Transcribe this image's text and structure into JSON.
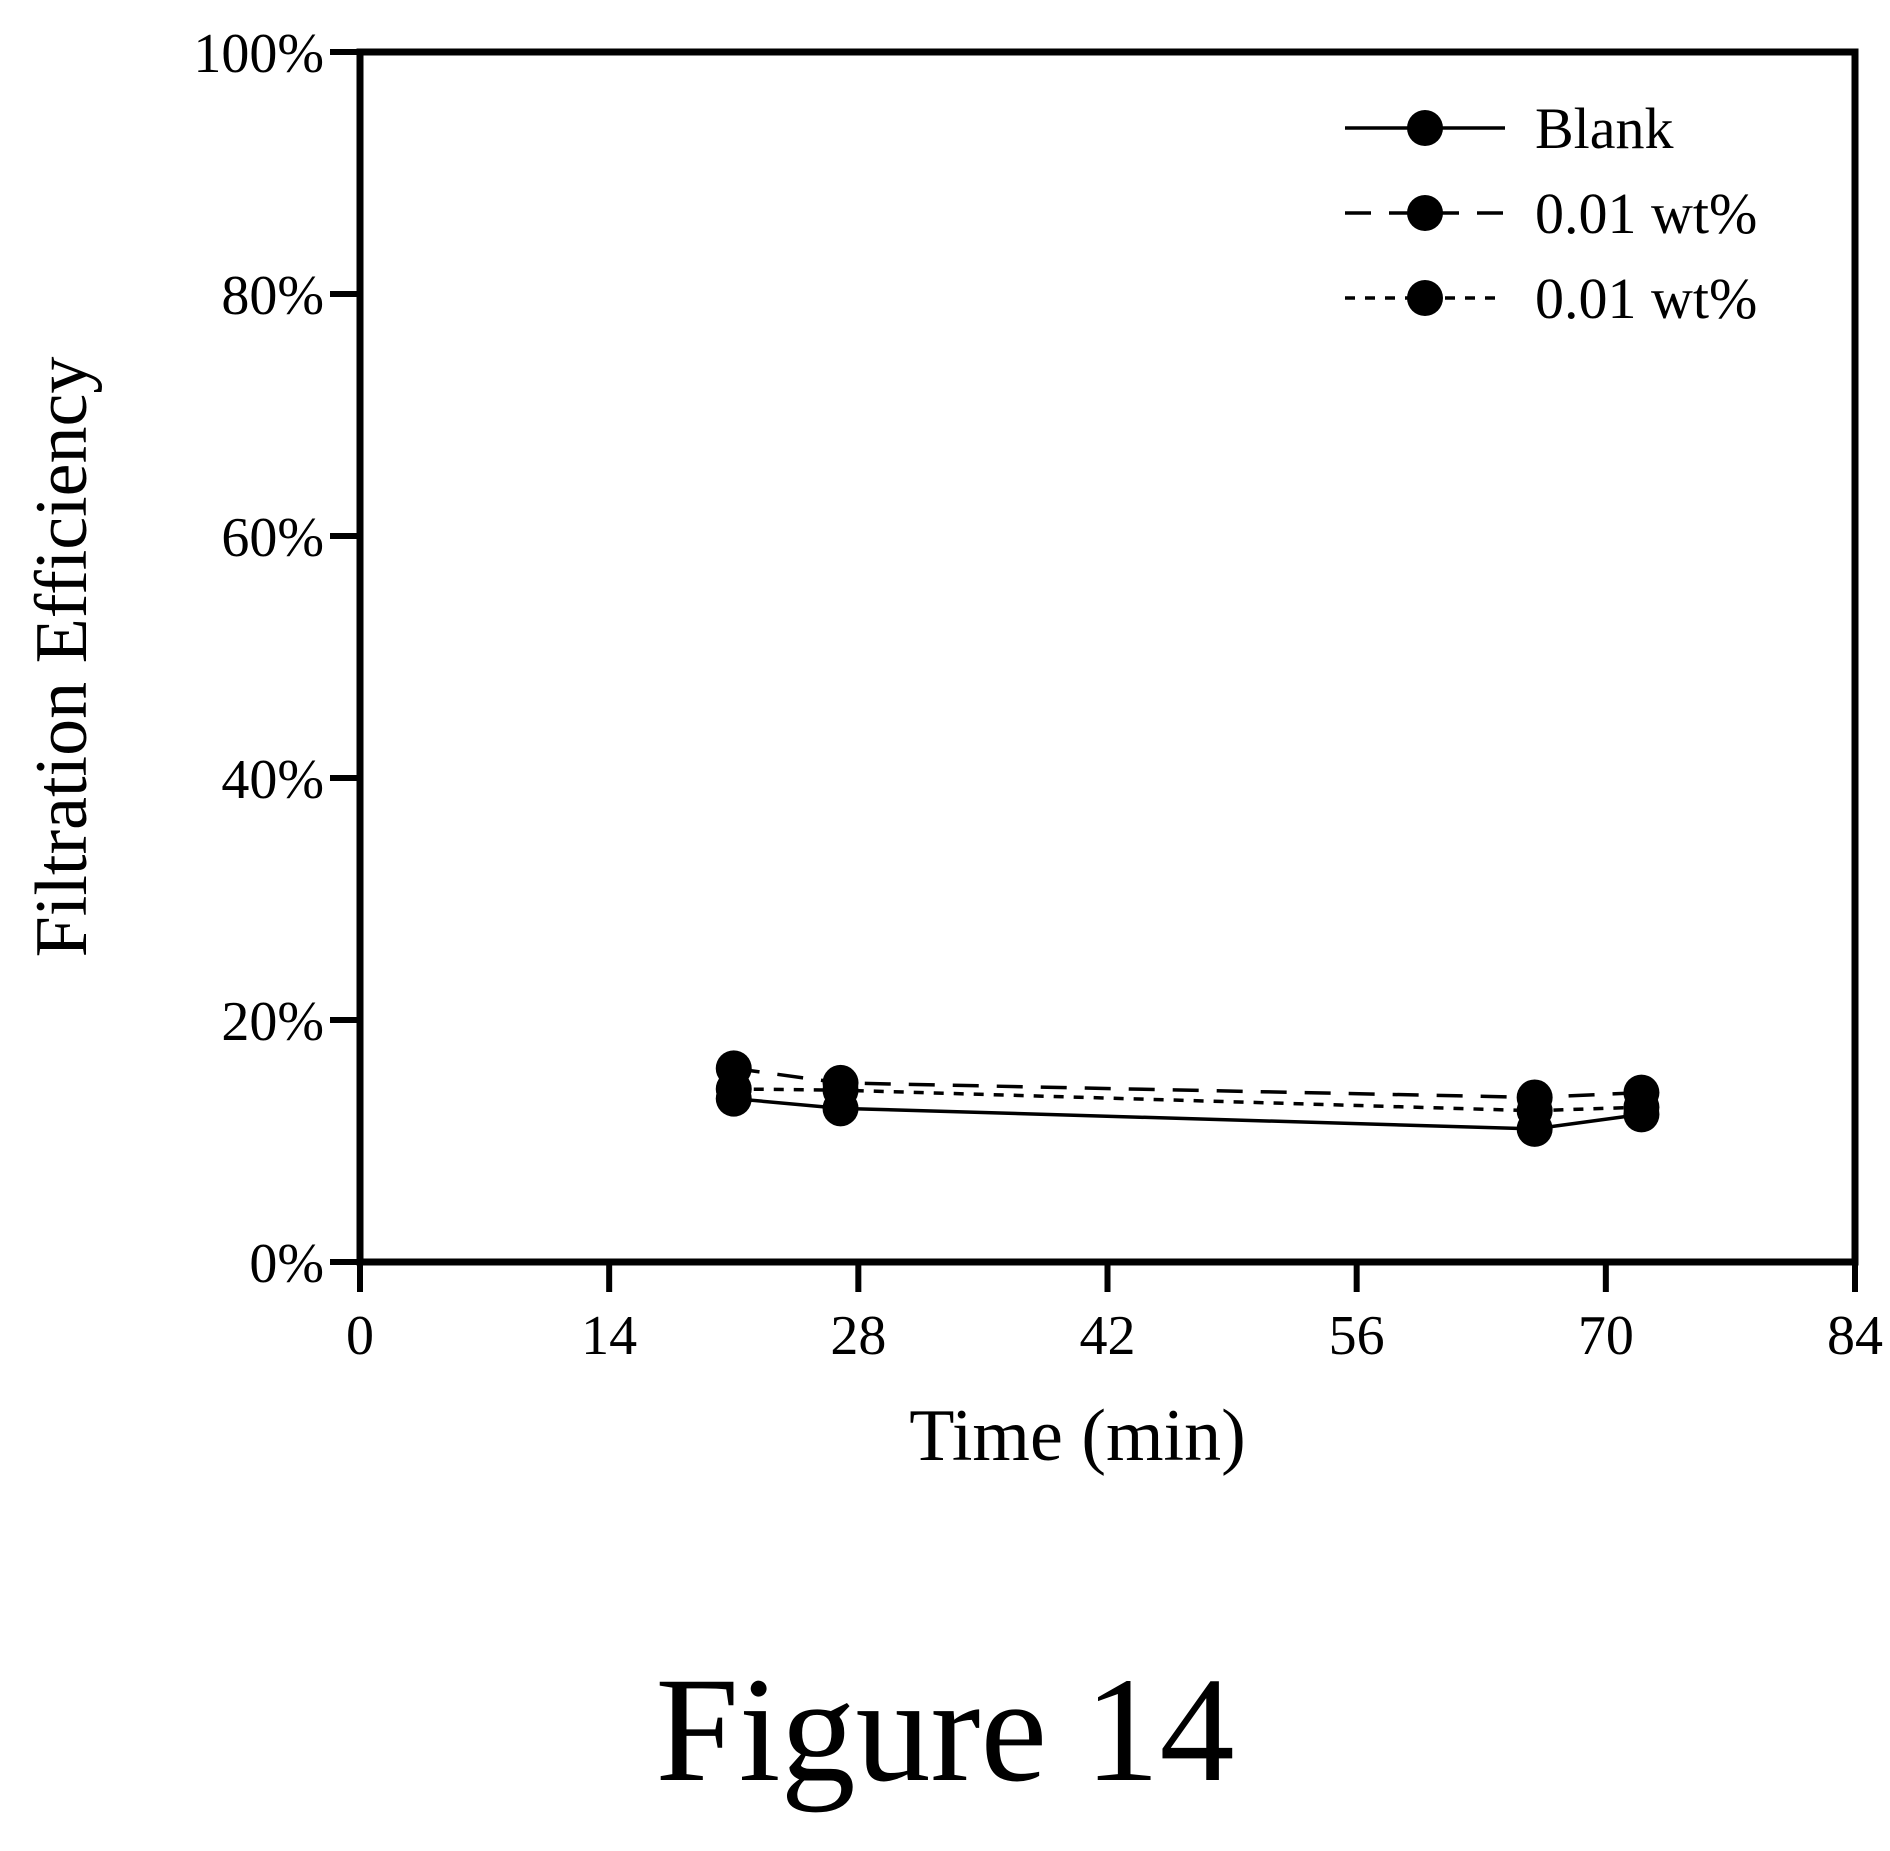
{
  "caption": "Figure 14",
  "chart_data": {
    "type": "line",
    "xlabel": "Time (min)",
    "ylabel": "Filtration Efficiency",
    "xlim": [
      0,
      84
    ],
    "ylim": [
      0,
      100
    ],
    "x_ticks": [
      "0",
      "14",
      "28",
      "42",
      "56",
      "70",
      "84"
    ],
    "y_ticks": [
      "0%",
      "20%",
      "40%",
      "60%",
      "80%",
      "100%"
    ],
    "grid": false,
    "legend_position": "top-right",
    "series": [
      {
        "name": "Blank",
        "line_style": "solid",
        "x": [
          21,
          27,
          66,
          72
        ],
        "y": [
          13.5,
          12.7,
          11.0,
          12.2
        ]
      },
      {
        "name": "0.01 wt%",
        "line_style": "dashed",
        "x": [
          21,
          27,
          66,
          72
        ],
        "y": [
          16.0,
          14.8,
          13.6,
          14.0
        ]
      },
      {
        "name": "0.01 wt%",
        "line_style": "dotted",
        "x": [
          21,
          27,
          66,
          72
        ],
        "y": [
          14.3,
          14.2,
          12.5,
          12.8
        ]
      }
    ]
  }
}
